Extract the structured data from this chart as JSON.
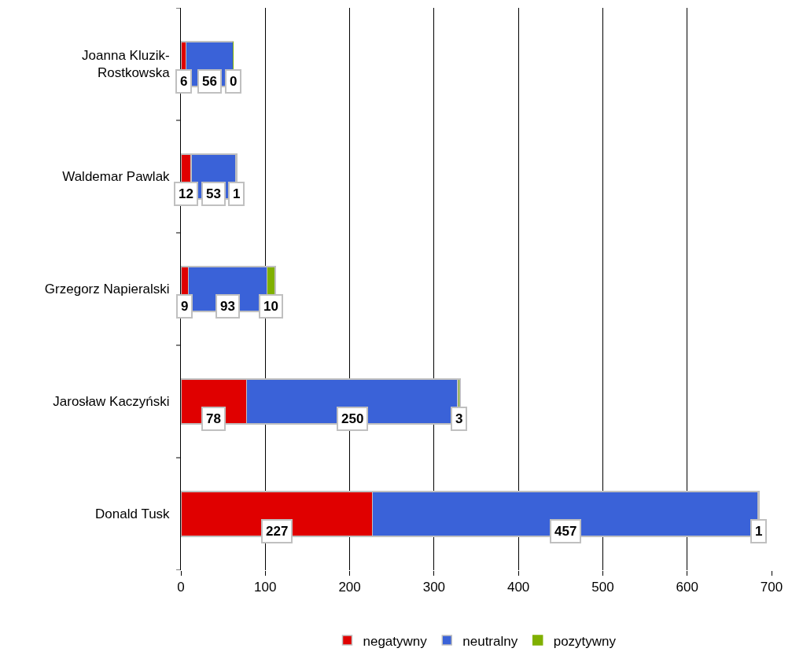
{
  "chart_data": {
    "type": "bar",
    "orientation": "horizontal",
    "stacked": true,
    "categories": [
      "Joanna Kluzik-Rostkowska",
      "Waldemar Pawlak",
      "Grzegorz Napieralski",
      "Jarosław Kaczyński",
      "Donald Tusk"
    ],
    "series": [
      {
        "name": "negatywny",
        "color": "#e00000",
        "values": [
          6,
          12,
          9,
          78,
          227
        ]
      },
      {
        "name": "neutralny",
        "color": "#3a62d8",
        "values": [
          56,
          53,
          93,
          250,
          457
        ]
      },
      {
        "name": "pozytywny",
        "color": "#80b000",
        "values": [
          0,
          1,
          10,
          3,
          1
        ]
      }
    ],
    "xlim": [
      0,
      700
    ],
    "xticks": [
      0,
      100,
      200,
      300,
      400,
      500,
      600,
      700
    ],
    "grid": "x",
    "legend": "bottom",
    "data_labels": true
  }
}
